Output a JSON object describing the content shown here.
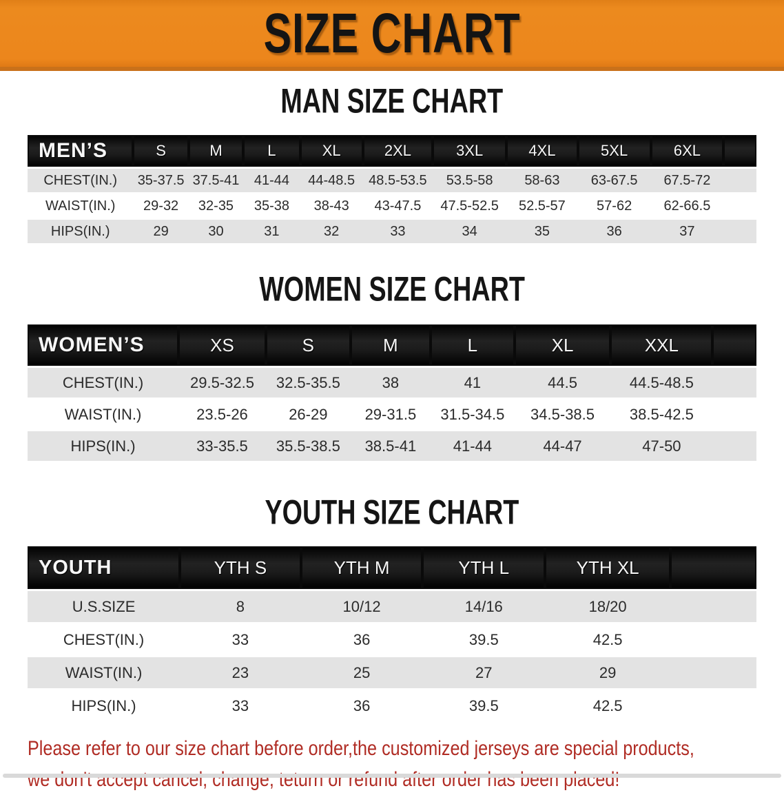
{
  "banner": {
    "title": "SIZE CHART",
    "bg_color": "#EC861C",
    "border_color": "#C9711A"
  },
  "headings": {
    "men": "MAN SIZE CHART",
    "women": "WOMEN SIZE CHART",
    "youth": "YOUTH SIZE CHART"
  },
  "tables": {
    "men": {
      "header_label": "MEN’S",
      "sizes": [
        "S",
        "M",
        "L",
        "XL",
        "2XL",
        "3XL",
        "4XL",
        "5XL",
        "6XL"
      ],
      "rows": [
        {
          "label": "CHEST(IN.)",
          "values": [
            "35-37.5",
            "37.5-41",
            "41-44",
            "44-48.5",
            "48.5-53.5",
            "53.5-58",
            "58-63",
            "63-67.5",
            "67.5-72"
          ]
        },
        {
          "label": "WAIST(IN.)",
          "values": [
            "29-32",
            "32-35",
            "35-38",
            "38-43",
            "43-47.5",
            "47.5-52.5",
            "52.5-57",
            "57-62",
            "62-66.5"
          ]
        },
        {
          "label": "HIPS(IN.)",
          "values": [
            "29",
            "30",
            "31",
            "32",
            "33",
            "34",
            "35",
            "36",
            "37"
          ]
        }
      ]
    },
    "women": {
      "header_label": "WOMEN’S",
      "sizes": [
        "XS",
        "S",
        "M",
        "L",
        "XL",
        "XXL"
      ],
      "rows": [
        {
          "label": "CHEST(IN.)",
          "values": [
            "29.5-32.5",
            "32.5-35.5",
            "38",
            "41",
            "44.5",
            "44.5-48.5"
          ]
        },
        {
          "label": "WAIST(IN.)",
          "values": [
            "23.5-26",
            "26-29",
            "29-31.5",
            "31.5-34.5",
            "34.5-38.5",
            "38.5-42.5"
          ]
        },
        {
          "label": "HIPS(IN.)",
          "values": [
            "33-35.5",
            "35.5-38.5",
            "38.5-41",
            "41-44",
            "44-47",
            "47-50"
          ]
        }
      ]
    },
    "youth": {
      "header_label": "YOUTH",
      "sizes": [
        "YTH S",
        "YTH M",
        "YTH L",
        "YTH XL"
      ],
      "rows": [
        {
          "label": "U.S.SIZE",
          "values": [
            "8",
            "10/12",
            "14/16",
            "18/20"
          ]
        },
        {
          "label": "CHEST(IN.)",
          "values": [
            "33",
            "36",
            "39.5",
            "42.5"
          ]
        },
        {
          "label": "WAIST(IN.)",
          "values": [
            "23",
            "25",
            "27",
            "29"
          ]
        },
        {
          "label": "HIPS(IN.)",
          "values": [
            "33",
            "36",
            "39.5",
            "42.5"
          ]
        }
      ]
    }
  },
  "disclaimer": {
    "line1": "Please refer to our size chart before order,the customized jerseys are special products,",
    "line2": "we don't accept cancel, change, teturn or refund after order has been placed!",
    "color": "#B02C24"
  },
  "colors": {
    "banner_orange": "#EC861C",
    "header_black": "#161616",
    "row_gray": "#E3E3E3",
    "disclaimer_red": "#B02C24"
  }
}
